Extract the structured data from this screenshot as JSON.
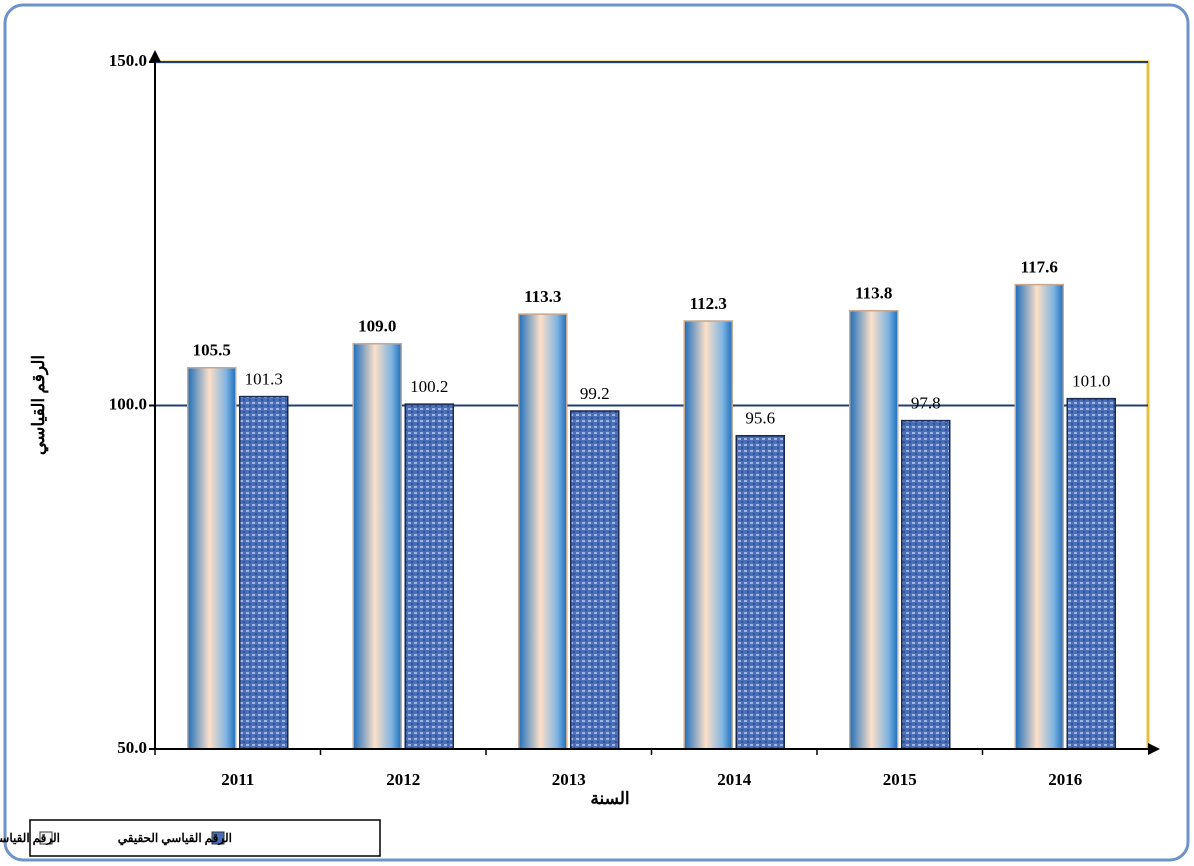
{
  "chart_data": {
    "type": "bar",
    "x_label": "السنة",
    "y_label": "الرقم القياسي",
    "categories": [
      "2011",
      "2012",
      "2013",
      "2014",
      "2015",
      "2016"
    ],
    "series": [
      {
        "name": "الرقم القياسي الاسمي",
        "color": "#2f7cc4",
        "values": [
          105.5,
          109.0,
          113.3,
          112.3,
          113.8,
          117.6
        ],
        "value_labels": [
          "105.5",
          "109.0",
          "113.3",
          "112.3",
          "113.8",
          "117.6"
        ]
      },
      {
        "name": "الرقم القياسي الحقيقي",
        "color": "#4a6fb8",
        "values": [
          101.3,
          100.2,
          99.2,
          95.6,
          97.8,
          101.0
        ],
        "value_labels": [
          "101.3",
          "100.2",
          "99.2",
          "95.6",
          "97.8",
          "101.0"
        ]
      }
    ],
    "ylim": [
      50,
      150
    ],
    "yticks": [
      {
        "value": 50,
        "label": "50.0"
      },
      {
        "value": 100,
        "label": "100.0"
      },
      {
        "value": 150,
        "label": "150.0"
      }
    ],
    "grid": true
  }
}
